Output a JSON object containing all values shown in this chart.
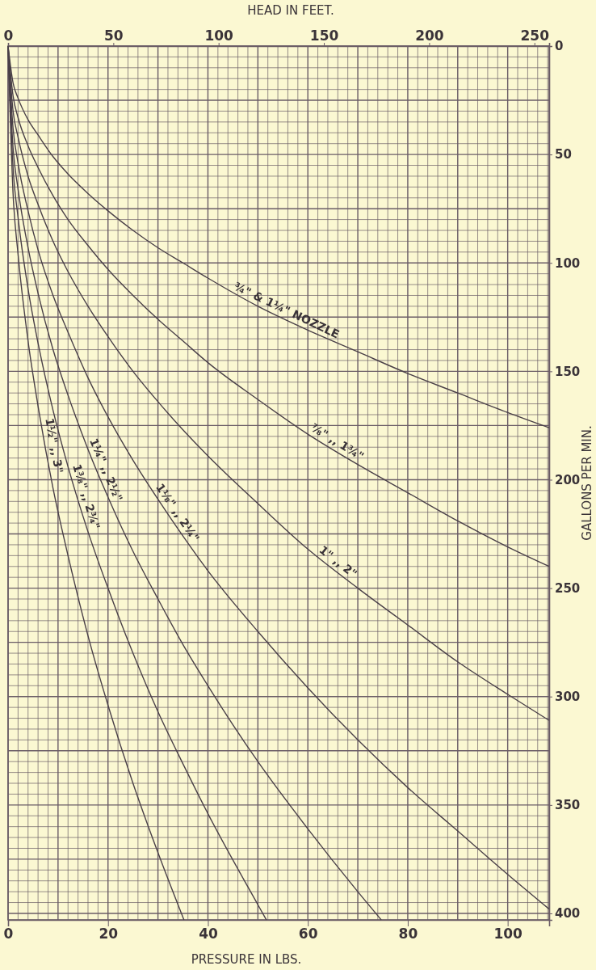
{
  "chart_data": {
    "type": "line",
    "xlabel": "PRESSURE IN LBS.",
    "x2label": "HEAD IN FEET.",
    "ylabel": "GALLONS PER MIN.",
    "xlim": [
      0,
      108.3
    ],
    "xticks": [
      0,
      20,
      40,
      60,
      80,
      100
    ],
    "x2lim": [
      0,
      257
    ],
    "x2ticks": [
      0,
      50,
      100,
      150,
      200,
      250
    ],
    "ylim": [
      403,
      0
    ],
    "yticks": [
      0,
      50,
      100,
      150,
      200,
      250,
      300,
      350,
      400
    ],
    "grid": true,
    "marker": "none",
    "line_style": "solid",
    "series": [
      {
        "name": "¾\" & 1¼\" NOZZLE",
        "color": "#4a4048",
        "x": [
          0,
          1,
          2,
          4,
          6,
          9,
          12,
          16,
          20,
          25,
          30,
          35,
          40,
          50,
          60,
          70,
          80,
          90,
          100,
          108.3
        ],
        "values": [
          0,
          17,
          24,
          34,
          41,
          51,
          59,
          68,
          76,
          85,
          93,
          100,
          107,
          120,
          131,
          141,
          151,
          160,
          169,
          176
        ]
      },
      {
        "name": "⅞\" ,, 1¾\"",
        "color": "#4a4048",
        "x": [
          0,
          1,
          2,
          4,
          6,
          9,
          12,
          16,
          20,
          25,
          30,
          35,
          40,
          50,
          60,
          70,
          80,
          90,
          100,
          108.3
        ],
        "values": [
          0,
          23,
          33,
          46,
          56,
          69,
          80,
          92,
          103,
          115,
          126,
          136,
          146,
          163,
          179,
          193,
          206,
          219,
          231,
          240
        ]
      },
      {
        "name": "1\" ,, 2\"",
        "color": "#4a4048",
        "x": [
          0,
          1,
          2,
          4,
          6,
          9,
          12,
          16,
          20,
          25,
          30,
          35,
          40,
          50,
          60,
          70,
          80,
          90,
          100,
          108.3
        ],
        "values": [
          0,
          30,
          42,
          60,
          73,
          90,
          104,
          120,
          134,
          150,
          164,
          177,
          189,
          211,
          232,
          250,
          267,
          284,
          299,
          311
        ]
      },
      {
        "name": "1⅛\" ,, 2¼\"",
        "color": "#4a4048",
        "x": [
          0,
          1,
          2,
          4,
          6,
          9,
          12,
          16,
          20,
          25,
          30,
          35,
          40,
          50,
          60,
          70,
          80,
          90,
          100,
          108.3
        ],
        "values": [
          0,
          38,
          54,
          76,
          94,
          115,
          132,
          153,
          171,
          191,
          209,
          226,
          242,
          270,
          296,
          320,
          342,
          362,
          382,
          398
        ]
      },
      {
        "name": "1¼\" ,, 2½\"",
        "color": "#4a4048",
        "x": [
          0,
          1,
          2,
          4,
          6,
          9,
          12,
          16,
          20,
          25,
          30,
          35,
          40,
          50,
          60,
          70,
          74.7
        ],
        "values": [
          0,
          47,
          66,
          93,
          114,
          140,
          161,
          186,
          208,
          233,
          255,
          276,
          295,
          330,
          361,
          390,
          403
        ]
      },
      {
        "name": "1⅜\" ,, 2¾\"",
        "color": "#4a4048",
        "x": [
          0,
          1,
          2,
          4,
          6,
          9,
          12,
          16,
          20,
          25,
          30,
          35,
          40,
          50,
          51.7
        ],
        "values": [
          0,
          56,
          79,
          112,
          137,
          168,
          194,
          224,
          250,
          280,
          307,
          331,
          354,
          396,
          403
        ]
      },
      {
        "name": "1½\" ,, 3\"",
        "color": "#4a4048",
        "x": [
          0,
          1,
          2,
          4,
          6,
          9,
          12,
          16,
          20,
          25,
          30,
          35.2
        ],
        "values": [
          0,
          68,
          96,
          136,
          166,
          204,
          235,
          272,
          304,
          340,
          372,
          403
        ]
      }
    ]
  }
}
